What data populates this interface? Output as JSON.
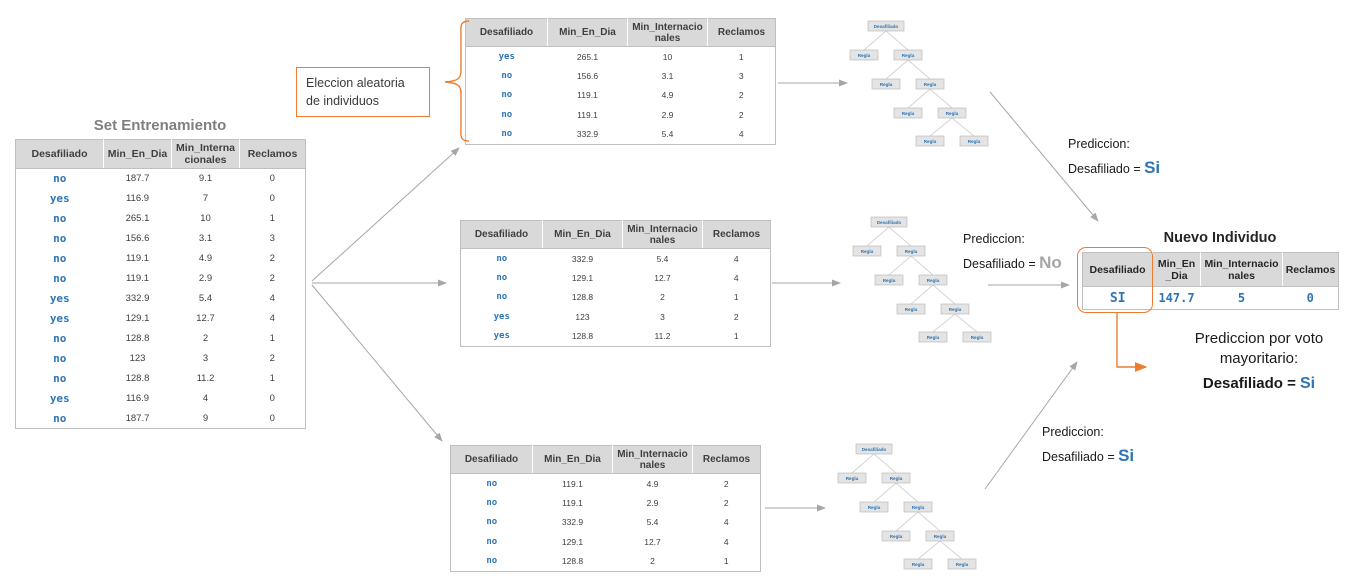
{
  "colors": {
    "accent_orange": "#ED7D31",
    "value_blue": "#2E75B6",
    "muted_gray": "#A6A6A6"
  },
  "selection_label": {
    "text": "Eleccion aleatoria de individuos"
  },
  "training_table": {
    "title": "Set Entrenamiento",
    "headers": [
      "Desafiliado",
      "Min_En_Dia",
      "Min_Internacionales",
      "Reclamos"
    ],
    "rows": [
      [
        "no",
        "187.7",
        "9.1",
        "0"
      ],
      [
        "yes",
        "116.9",
        "7",
        "0"
      ],
      [
        "no",
        "265.1",
        "10",
        "1"
      ],
      [
        "no",
        "156.6",
        "3.1",
        "3"
      ],
      [
        "no",
        "119.1",
        "4.9",
        "2"
      ],
      [
        "no",
        "119.1",
        "2.9",
        "2"
      ],
      [
        "yes",
        "332.9",
        "5.4",
        "4"
      ],
      [
        "yes",
        "129.1",
        "12.7",
        "4"
      ],
      [
        "no",
        "128.8",
        "2",
        "1"
      ],
      [
        "no",
        "123",
        "3",
        "2"
      ],
      [
        "no",
        "128.8",
        "11.2",
        "1"
      ],
      [
        "yes",
        "116.9",
        "4",
        "0"
      ],
      [
        "no",
        "187.7",
        "9",
        "0"
      ]
    ]
  },
  "sample_tables": [
    {
      "headers": [
        "Desafiliado",
        "Min_En_Dia",
        "Min_Internacionales",
        "Reclamos"
      ],
      "rows": [
        [
          "yes",
          "265.1",
          "10",
          "1"
        ],
        [
          "no",
          "156.6",
          "3.1",
          "3"
        ],
        [
          "no",
          "119.1",
          "4.9",
          "2"
        ],
        [
          "no",
          "119.1",
          "2.9",
          "2"
        ],
        [
          "no",
          "332.9",
          "5.4",
          "4"
        ]
      ]
    },
    {
      "headers": [
        "Desafiliado",
        "Min_En_Dia",
        "Min_Internacionales",
        "Reclamos"
      ],
      "rows": [
        [
          "no",
          "332.9",
          "5.4",
          "4"
        ],
        [
          "no",
          "129.1",
          "12.7",
          "4"
        ],
        [
          "no",
          "128.8",
          "2",
          "1"
        ],
        [
          "yes",
          "123",
          "3",
          "2"
        ],
        [
          "yes",
          "128.8",
          "11.2",
          "1"
        ]
      ]
    },
    {
      "headers": [
        "Desafiliado",
        "Min_En_Dia",
        "Min_Internacionales",
        "Reclamos"
      ],
      "rows": [
        [
          "no",
          "119.1",
          "4.9",
          "2"
        ],
        [
          "no",
          "119.1",
          "2.9",
          "2"
        ],
        [
          "no",
          "332.9",
          "5.4",
          "4"
        ],
        [
          "no",
          "129.1",
          "12.7",
          "4"
        ],
        [
          "no",
          "128.8",
          "2",
          "1"
        ]
      ]
    }
  ],
  "trees": {
    "root_label": "Desafiliado",
    "rule_label": "Regla"
  },
  "predictions": [
    {
      "line1": "Prediccion:",
      "prefix": "Desafiliado = ",
      "value": "Si",
      "value_color": "#2E75B6"
    },
    {
      "line1": "Prediccion:",
      "prefix": "Desafiliado = ",
      "value": "No",
      "value_color": "#A6A6A6"
    },
    {
      "line1": "Prediccion:",
      "prefix": "Desafiliado = ",
      "value": "Si",
      "value_color": "#2E75B6"
    }
  ],
  "new_individual": {
    "title": "Nuevo Individuo",
    "headers": [
      "Desafiliado",
      "Min_En_Dia",
      "Min_Internacionales",
      "Reclamos"
    ],
    "rows": [
      [
        "SI",
        "147.7",
        "5",
        "0"
      ]
    ]
  },
  "majority_vote": {
    "line1": "Prediccion por voto",
    "line2": "mayoritario:",
    "prefix": "Desafiliado = ",
    "value": "Si",
    "value_color": "#2E75B6"
  }
}
